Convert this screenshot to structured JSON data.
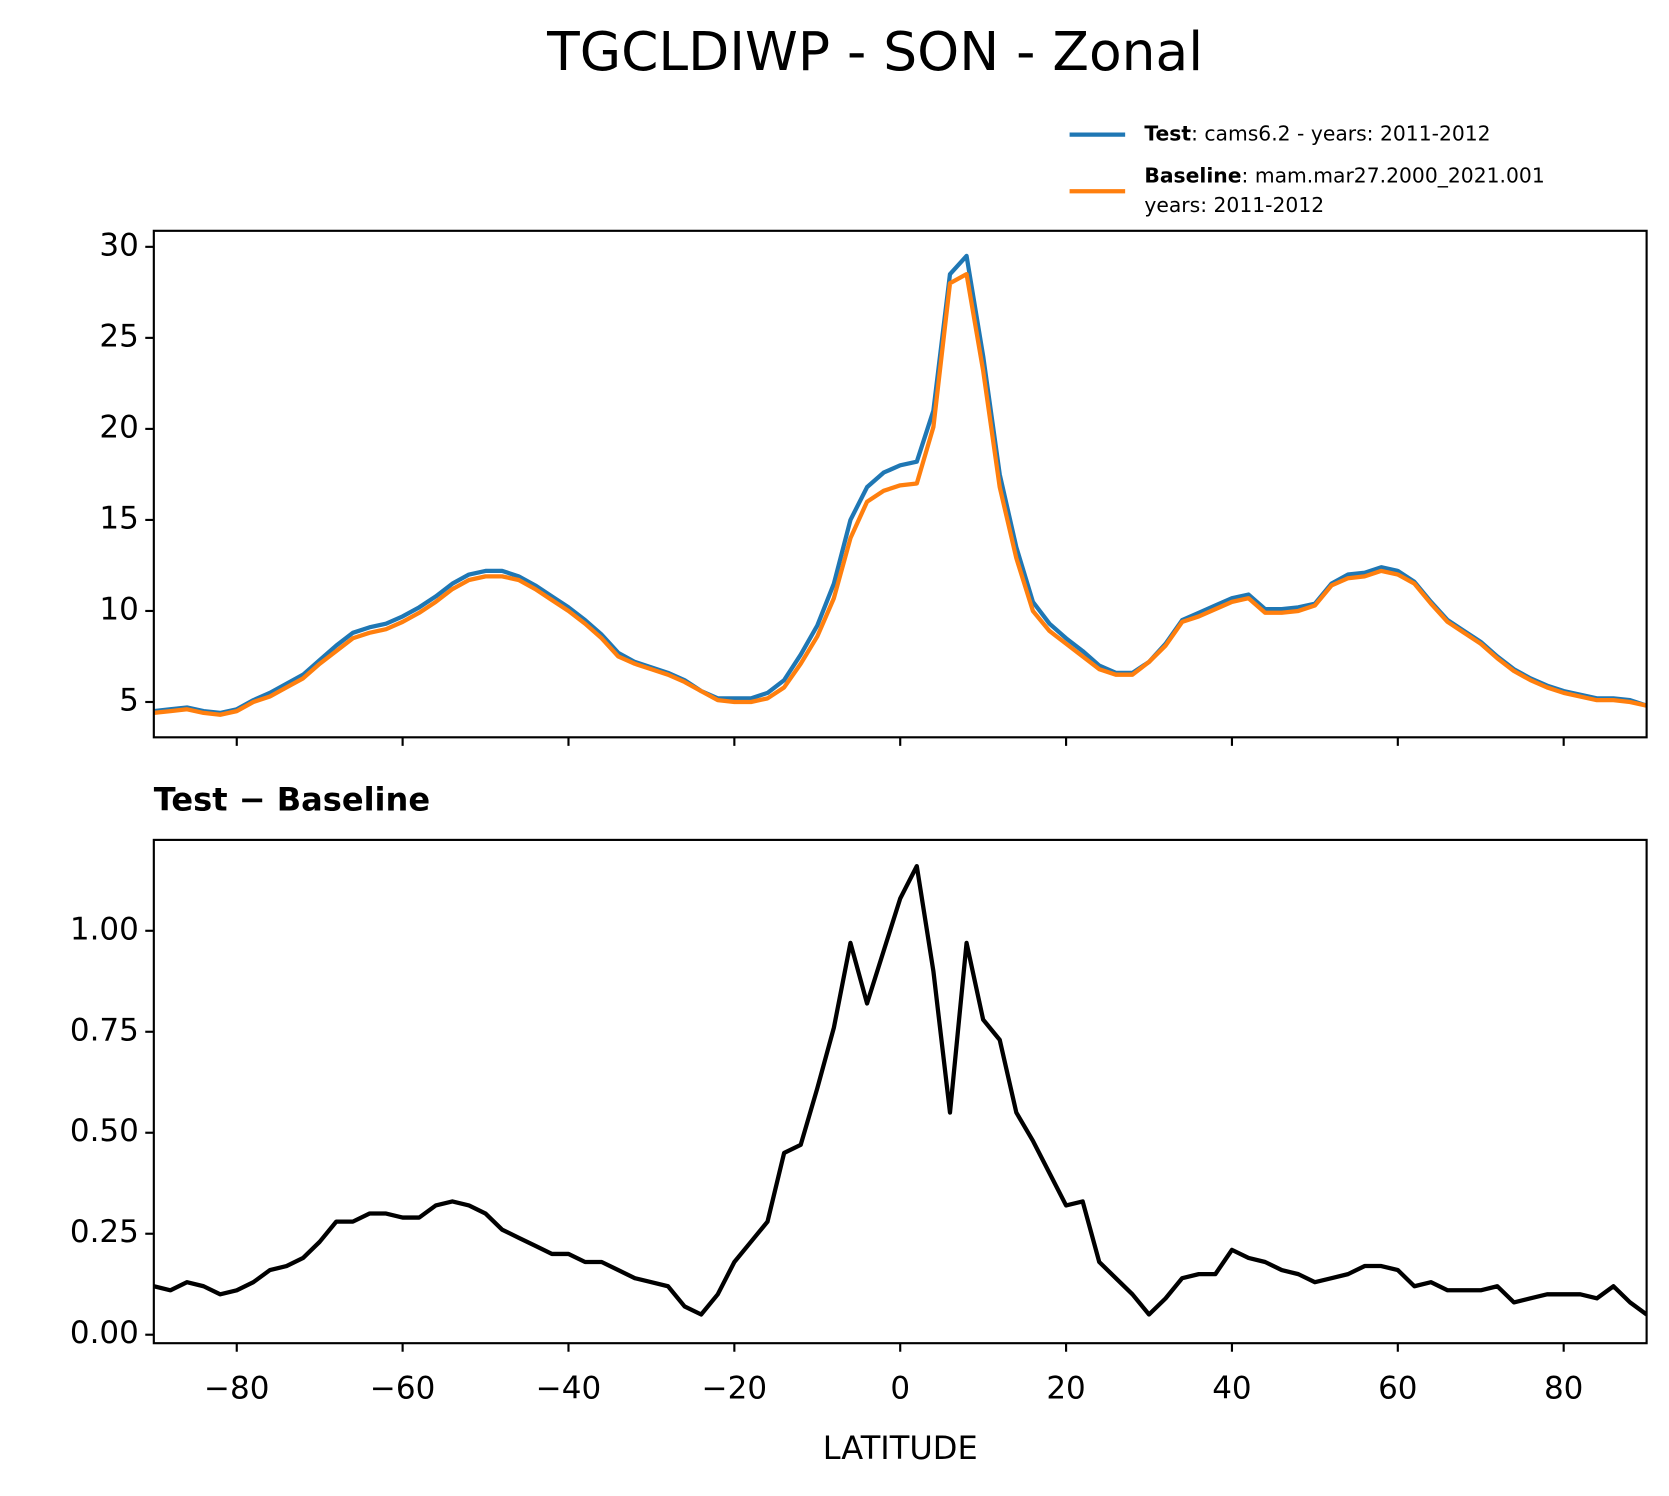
{
  "title": "TGCLDIWP - SON - Zonal",
  "chart_data": [
    {
      "type": "line",
      "x": [
        -90,
        -88,
        -86,
        -84,
        -82,
        -80,
        -78,
        -76,
        -74,
        -72,
        -70,
        -68,
        -66,
        -64,
        -62,
        -60,
        -58,
        -56,
        -54,
        -52,
        -50,
        -48,
        -46,
        -44,
        -42,
        -40,
        -38,
        -36,
        -34,
        -32,
        -30,
        -28,
        -26,
        -24,
        -22,
        -20,
        -18,
        -16,
        -14,
        -12,
        -10,
        -8,
        -6,
        -4,
        -2,
        0,
        2,
        4,
        6,
        8,
        10,
        12,
        14,
        16,
        18,
        20,
        22,
        24,
        26,
        28,
        30,
        32,
        34,
        36,
        38,
        40,
        42,
        44,
        46,
        48,
        50,
        52,
        54,
        56,
        58,
        60,
        62,
        64,
        66,
        68,
        70,
        72,
        74,
        76,
        78,
        80,
        82,
        84,
        86,
        88,
        90
      ],
      "series": [
        {
          "name": "Test",
          "label_lines": [
            ": cams6.2 - years: 2011-2012"
          ],
          "color": "#1f77b4",
          "values": [
            4.5,
            4.6,
            4.7,
            4.5,
            4.4,
            4.6,
            5.1,
            5.5,
            6.0,
            6.5,
            7.3,
            8.1,
            8.8,
            9.1,
            9.3,
            9.7,
            10.2,
            10.8,
            11.5,
            12.0,
            12.2,
            12.2,
            11.9,
            11.4,
            10.8,
            10.2,
            9.5,
            8.7,
            7.7,
            7.2,
            6.9,
            6.6,
            6.2,
            5.6,
            5.2,
            5.2,
            5.2,
            5.5,
            6.2,
            7.6,
            9.2,
            11.5,
            15.0,
            16.8,
            17.6,
            18.0,
            18.2,
            21.0,
            28.5,
            29.5,
            24.0,
            17.5,
            13.5,
            10.5,
            9.3,
            8.5,
            7.8,
            7.0,
            6.6,
            6.6,
            7.2,
            8.2,
            9.5,
            9.9,
            10.3,
            10.7,
            10.9,
            10.1,
            10.1,
            10.2,
            10.4,
            11.5,
            12.0,
            12.1,
            12.4,
            12.2,
            11.6,
            10.5,
            9.5,
            8.9,
            8.3,
            7.5,
            6.8,
            6.3,
            5.9,
            5.6,
            5.4,
            5.2,
            5.2,
            5.1,
            4.8
          ]
        },
        {
          "name": "Baseline",
          "label_lines": [
            ": mam.mar27.2000_2021.001",
            "years: 2011-2012"
          ],
          "color": "#ff7f0e",
          "values": [
            4.4,
            4.5,
            4.6,
            4.4,
            4.3,
            4.5,
            5.0,
            5.3,
            5.8,
            6.3,
            7.1,
            7.8,
            8.5,
            8.8,
            9.0,
            9.4,
            9.9,
            10.5,
            11.2,
            11.7,
            11.9,
            11.9,
            11.7,
            11.2,
            10.6,
            10.0,
            9.3,
            8.5,
            7.5,
            7.1,
            6.8,
            6.5,
            6.1,
            5.6,
            5.1,
            5.0,
            5.0,
            5.2,
            5.8,
            7.1,
            8.6,
            10.7,
            14.0,
            16.0,
            16.6,
            16.9,
            17.0,
            20.1,
            28.0,
            28.5,
            23.2,
            16.8,
            12.9,
            10.0,
            8.9,
            8.2,
            7.5,
            6.8,
            6.5,
            6.5,
            7.2,
            8.1,
            9.4,
            9.7,
            10.1,
            10.5,
            10.7,
            9.9,
            9.9,
            10.0,
            10.3,
            11.4,
            11.8,
            11.9,
            12.2,
            12.0,
            11.5,
            10.4,
            9.4,
            8.8,
            8.2,
            7.4,
            6.7,
            6.2,
            5.8,
            5.5,
            5.3,
            5.1,
            5.1,
            5.0,
            4.8
          ]
        }
      ],
      "xlim": [
        -90,
        90
      ],
      "xticks": [
        -80,
        -60,
        -40,
        -20,
        0,
        20,
        40,
        60,
        80
      ],
      "ylim": [
        3.06,
        30.88
      ],
      "yticks": [
        5,
        10,
        15,
        20,
        25,
        30
      ]
    },
    {
      "type": "line",
      "title": "Test − Baseline",
      "xlabel": "LATITUDE",
      "x": [
        -90,
        -88,
        -86,
        -84,
        -82,
        -80,
        -78,
        -76,
        -74,
        -72,
        -70,
        -68,
        -66,
        -64,
        -62,
        -60,
        -58,
        -56,
        -54,
        -52,
        -50,
        -48,
        -46,
        -44,
        -42,
        -40,
        -38,
        -36,
        -34,
        -32,
        -30,
        -28,
        -26,
        -24,
        -22,
        -20,
        -18,
        -16,
        -14,
        -12,
        -10,
        -8,
        -6,
        -4,
        -2,
        0,
        2,
        4,
        6,
        8,
        10,
        12,
        14,
        16,
        18,
        20,
        22,
        24,
        26,
        28,
        30,
        32,
        34,
        36,
        38,
        40,
        42,
        44,
        46,
        48,
        50,
        52,
        54,
        56,
        58,
        60,
        62,
        64,
        66,
        68,
        70,
        72,
        74,
        76,
        78,
        80,
        82,
        84,
        86,
        88,
        90
      ],
      "series": [
        {
          "color": "#000000",
          "values": [
            0.12,
            0.11,
            0.13,
            0.12,
            0.1,
            0.11,
            0.13,
            0.16,
            0.17,
            0.19,
            0.23,
            0.28,
            0.28,
            0.3,
            0.3,
            0.29,
            0.29,
            0.32,
            0.33,
            0.32,
            0.3,
            0.26,
            0.24,
            0.22,
            0.2,
            0.2,
            0.18,
            0.18,
            0.16,
            0.14,
            0.13,
            0.12,
            0.07,
            0.05,
            0.1,
            0.18,
            0.23,
            0.28,
            0.45,
            0.47,
            0.61,
            0.76,
            0.97,
            0.82,
            0.95,
            1.08,
            1.16,
            0.9,
            0.55,
            0.97,
            0.78,
            0.73,
            0.55,
            0.48,
            0.4,
            0.32,
            0.33,
            0.18,
            0.14,
            0.1,
            0.05,
            0.09,
            0.14,
            0.15,
            0.15,
            0.21,
            0.19,
            0.18,
            0.16,
            0.15,
            0.13,
            0.14,
            0.15,
            0.17,
            0.17,
            0.16,
            0.12,
            0.13,
            0.11,
            0.11,
            0.11,
            0.12,
            0.08,
            0.09,
            0.1,
            0.1,
            0.1,
            0.09,
            0.12,
            0.08,
            0.05
          ]
        }
      ],
      "xlim": [
        -90,
        90
      ],
      "xticks": [
        {
          "value": -80,
          "label": "−80"
        },
        {
          "value": -60,
          "label": "−60"
        },
        {
          "value": -40,
          "label": "−40"
        },
        {
          "value": -20,
          "label": "−20"
        },
        0,
        20,
        40,
        60,
        80
      ],
      "ylim": [
        -0.021,
        1.225
      ],
      "yticks": [
        {
          "value": 0,
          "label": "0.00"
        },
        {
          "value": 0.25,
          "label": "0.25"
        },
        {
          "value": 0.5,
          "label": "0.50"
        },
        {
          "value": 0.75,
          "label": "0.75"
        },
        {
          "value": 1,
          "label": "1.00"
        }
      ]
    }
  ]
}
